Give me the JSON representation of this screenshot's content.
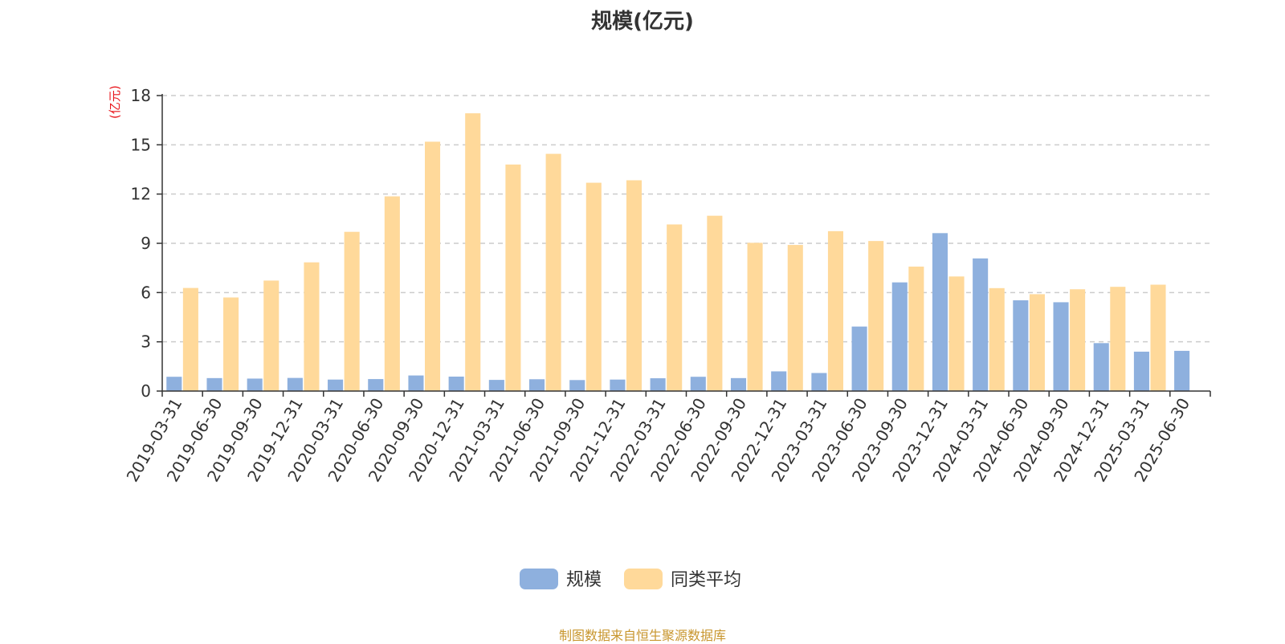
{
  "title": "规模(亿元)",
  "unit_label": "(亿元)",
  "source_note": "制图数据来自恒生聚源数据库",
  "colors": {
    "series_scale": "#8eb0de",
    "series_avg": "#ffd99a",
    "axis": "#333333",
    "grid": "#cccccc",
    "unit_label": "#e8141a",
    "source_note": "#c8962e"
  },
  "chart_data": {
    "type": "bar",
    "title": "规模(亿元)",
    "ylabel": "(亿元)",
    "xlabel": "",
    "ylim": [
      0,
      18
    ],
    "yticks": [
      0,
      3,
      6,
      9,
      12,
      15,
      18
    ],
    "grid": true,
    "legend_position": "bottom",
    "categories": [
      "2019-03-31",
      "2019-06-30",
      "2019-09-30",
      "2019-12-31",
      "2020-03-31",
      "2020-06-30",
      "2020-09-30",
      "2020-12-31",
      "2021-03-31",
      "2021-06-30",
      "2021-09-30",
      "2021-12-31",
      "2022-03-31",
      "2022-06-30",
      "2022-09-30",
      "2022-12-31",
      "2023-03-31",
      "2023-06-30",
      "2023-09-30",
      "2023-12-31",
      "2024-03-31",
      "2024-06-30",
      "2024-09-30",
      "2024-12-31",
      "2025-03-31",
      "2025-06-30"
    ],
    "series": [
      {
        "name": "规模",
        "color": "#8eb0de",
        "values": [
          0.87,
          0.79,
          0.76,
          0.8,
          0.7,
          0.73,
          0.95,
          0.88,
          0.68,
          0.72,
          0.67,
          0.7,
          0.78,
          0.87,
          0.79,
          1.2,
          1.1,
          3.93,
          6.62,
          9.62,
          8.08,
          5.53,
          5.41,
          2.92,
          2.4,
          2.45
        ]
      },
      {
        "name": "同类平均",
        "color": "#ffd99a",
        "values": [
          6.28,
          5.7,
          6.73,
          7.84,
          9.7,
          11.86,
          15.19,
          16.92,
          13.8,
          14.45,
          12.69,
          12.84,
          10.15,
          10.68,
          9.03,
          8.9,
          9.74,
          9.14,
          7.58,
          6.98,
          6.27,
          5.9,
          6.2,
          6.35,
          6.48,
          null
        ]
      }
    ]
  }
}
